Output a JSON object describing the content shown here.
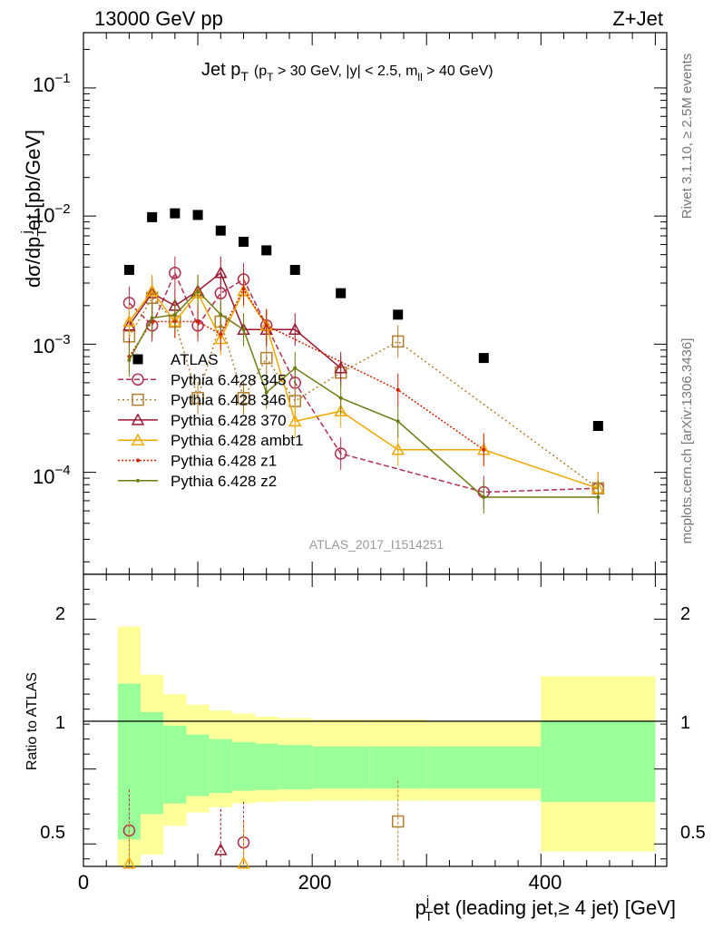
{
  "header": {
    "left": "13000 GeV pp",
    "right": "Z+Jet"
  },
  "side_labels": {
    "rivet": "Rivet 3.1.10, ≥ 2.5M events",
    "mcplots": "mcplots.cern.ch [arXiv:1306.3436]"
  },
  "analysis_tag": "ATLAS_2017_I1514251",
  "title": {
    "main": "Jet p",
    "main_sub": "T",
    "cuts": "(p",
    "cuts_sub": "T",
    "cuts_rest": " > 30 GeV, |y| < 2.5, m",
    "cuts_sub2": "ll",
    "cuts_end": " > 40 GeV)"
  },
  "ylabel": "dσ/dp",
  "ylabel_sub": "T",
  "ylabel_sup": "j",
  "ylabel_rest": "et [pb/GeV]",
  "xlabel": {
    "p": "p",
    "sup": "j",
    "sub": "T",
    "rest": "et (leading jet,≥ 4 jet) [GeV]"
  },
  "ratio_ylabel": "Ratio to ATLAS",
  "tick_labels": {
    "main_y": [
      "10",
      "10",
      "10",
      "10"
    ],
    "main_y_exp": [
      "−1",
      "−2",
      "−3",
      "−4"
    ],
    "ratio_y": [
      "2",
      "1",
      "0.5"
    ],
    "x": [
      "0",
      "200",
      "400"
    ]
  },
  "chart_data": {
    "type": "scatter",
    "x_range": [
      0,
      510
    ],
    "y_range": [
      1.6e-05,
      0.27
    ],
    "y_scale": "log",
    "ratio_range": [
      0.35,
      2.3
    ],
    "legend_position": "center-left",
    "series": [
      {
        "name": "ATLAS",
        "color": "#000000",
        "marker": "square",
        "x": [
          40,
          60,
          80,
          100,
          120,
          140,
          160,
          185,
          225,
          275,
          350,
          450
        ],
        "y": [
          0.0038,
          0.0098,
          0.0105,
          0.0102,
          0.0077,
          0.0063,
          0.0054,
          0.0038,
          0.0025,
          0.0017,
          0.00078,
          0.00023
        ]
      },
      {
        "name": "Pythia 6.428 345",
        "color": "#b03050",
        "marker": "circle",
        "dash": "6,3",
        "x": [
          40,
          60,
          80,
          100,
          120,
          140,
          160,
          185,
          225,
          350,
          450
        ],
        "y": [
          0.0021,
          0.0014,
          0.0036,
          0.0014,
          0.0025,
          0.0032,
          0.0014,
          0.0005,
          0.00014,
          7e-05,
          7.5e-05
        ]
      },
      {
        "name": "Pythia 6.428 346",
        "color": "#b08030",
        "marker": "square-open",
        "dash": "2,3",
        "x": [
          40,
          60,
          80,
          100,
          120,
          140,
          160,
          185,
          225,
          275,
          450
        ],
        "y": [
          0.00115,
          0.0023,
          0.0015,
          0.00038,
          0.0015,
          0.00038,
          0.00078,
          0.00036,
          0.0006,
          0.00105,
          7.5e-05
        ]
      },
      {
        "name": "Pythia 6.428 370",
        "color": "#991830",
        "marker": "triangle-open",
        "dash": "",
        "x": [
          40,
          60,
          80,
          100,
          120,
          140,
          160,
          185,
          225
        ],
        "y": [
          0.0014,
          0.0025,
          0.002,
          0.0026,
          0.0036,
          0.0013,
          0.0013,
          0.0013,
          0.00065
        ]
      },
      {
        "name": "Pythia 6.428 ambt1",
        "color": "#f0a800",
        "marker": "triangle-open",
        "dash": "",
        "x": [
          40,
          60,
          80,
          100,
          120,
          140,
          160,
          185,
          225,
          275,
          350,
          450
        ],
        "y": [
          0.0015,
          0.0026,
          0.0015,
          0.0025,
          0.0011,
          0.0026,
          0.0014,
          0.00025,
          0.0003,
          0.00015,
          0.00015,
          7.5e-05
        ]
      },
      {
        "name": "Pythia 6.428 z1",
        "color": "#d02000",
        "marker": "dot",
        "dash": "2,2",
        "x": [
          40,
          60,
          80,
          100,
          120,
          140,
          160,
          275,
          350
        ],
        "y": [
          0.0008,
          0.0015,
          0.0015,
          0.0015,
          0.0012,
          0.0027,
          0.0014,
          0.00044,
          0.00015
        ]
      },
      {
        "name": "Pythia 6.428 z2",
        "color": "#6e7a10",
        "marker": "dot",
        "dash": "",
        "x": [
          40,
          60,
          80,
          100,
          120,
          140,
          160,
          185,
          225,
          275,
          350,
          450
        ],
        "y": [
          0.00075,
          0.0016,
          0.0017,
          0.0026,
          0.0017,
          0.0013,
          0.00042,
          0.00065,
          0.00038,
          0.00025,
          6.4e-05,
          6.4e-05
        ]
      }
    ],
    "ratio_bands": {
      "bin_edges": [
        30,
        50,
        70,
        90,
        110,
        130,
        150,
        170,
        200,
        250,
        300,
        400,
        500
      ],
      "green_low": [
        0.53,
        0.7,
        0.77,
        0.82,
        0.84,
        0.855,
        0.86,
        0.865,
        0.87,
        0.87,
        0.87,
        0.78
      ],
      "green_high": [
        1.57,
        1.38,
        1.29,
        1.23,
        1.2,
        1.18,
        1.17,
        1.16,
        1.15,
        1.15,
        1.15,
        1.32
      ],
      "yellow_low": [
        0.3,
        0.43,
        0.62,
        0.71,
        0.745,
        0.77,
        0.78,
        0.785,
        0.79,
        0.79,
        0.79,
        0.45
      ],
      "yellow_high": [
        1.95,
        1.63,
        1.5,
        1.43,
        1.39,
        1.37,
        1.35,
        1.34,
        1.33,
        1.33,
        1.32,
        1.62
      ]
    },
    "ratio_points": [
      {
        "series": "Pythia 6.428 345",
        "x": 40,
        "y": 0.59
      },
      {
        "series": "Pythia 6.428 345",
        "x": 140,
        "y": 0.51
      },
      {
        "series": "Pythia 6.428 346",
        "x": 275,
        "y": 0.65
      },
      {
        "series": "Pythia 6.428 370",
        "x": 120,
        "y": 0.46
      },
      {
        "series": "Pythia 6.428 ambt1",
        "x": 40,
        "y": 0.37
      },
      {
        "series": "Pythia 6.428 ambt1",
        "x": 140,
        "y": 0.37
      }
    ]
  }
}
